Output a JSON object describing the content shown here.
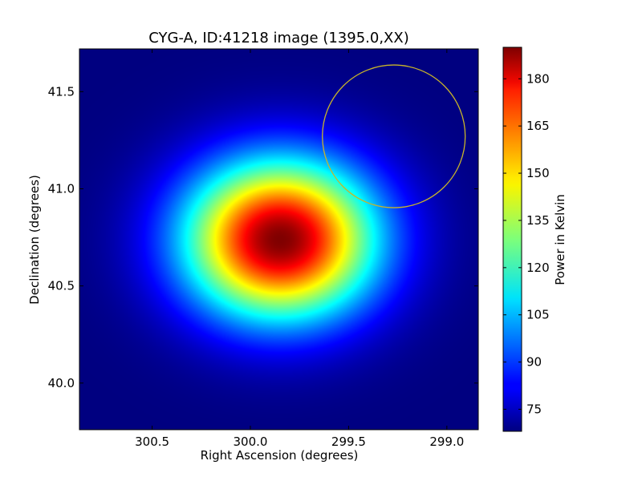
{
  "chart_data": {
    "type": "heatmap",
    "title": "CYG-A, ID:41218 image (1395.0,XX)",
    "xlabel": "Right Ascension (degrees)",
    "ylabel": "Declination (degrees)",
    "colorbar_label": "Power in Kelvin",
    "colormap": "jet",
    "x_range": [
      300.87,
      298.84
    ],
    "y_range": [
      39.76,
      41.72
    ],
    "x_ticks": [
      {
        "value": 300.5,
        "label": "300.5"
      },
      {
        "value": 300.0,
        "label": "300.0"
      },
      {
        "value": 299.5,
        "label": "299.5"
      },
      {
        "value": 299.0,
        "label": "299.0"
      }
    ],
    "y_ticks": [
      {
        "value": 40.0,
        "label": "40.0"
      },
      {
        "value": 40.5,
        "label": "40.5"
      },
      {
        "value": 41.0,
        "label": "41.0"
      },
      {
        "value": 41.5,
        "label": "41.5"
      }
    ],
    "colorbar_range": [
      68,
      190
    ],
    "colorbar_ticks": [
      75,
      90,
      105,
      120,
      135,
      150,
      165,
      180
    ],
    "source": {
      "ra": 299.85,
      "dec": 40.74,
      "peak": 190,
      "background": 68
    },
    "beam_circle": {
      "ra_center": 299.27,
      "dec_center": 41.27,
      "color": "#c8b42a"
    }
  }
}
